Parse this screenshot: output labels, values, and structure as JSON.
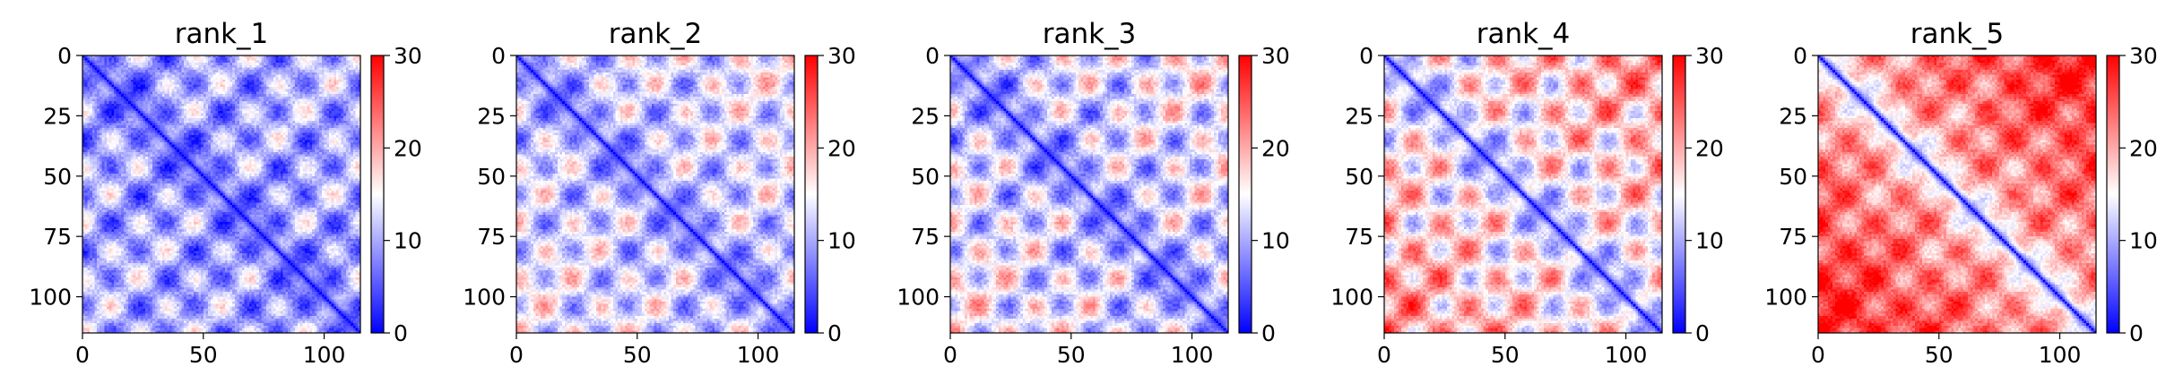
{
  "chart_data": [
    {
      "type": "heatmap",
      "title": "rank_1",
      "matrix_size": 115,
      "xlim": [
        0,
        115
      ],
      "ylim": [
        115,
        0
      ],
      "x_ticks": [
        0,
        50,
        100
      ],
      "x_tick_labels": [
        "0",
        "50",
        "100"
      ],
      "y_ticks": [
        0,
        25,
        50,
        75,
        100
      ],
      "y_tick_labels": [
        "0",
        "25",
        "50",
        "75",
        "100"
      ],
      "colorbar": {
        "range": [
          0,
          30
        ],
        "ticks": [
          0,
          10,
          20,
          30
        ],
        "tick_labels": [
          "0",
          "10",
          "20",
          "30"
        ],
        "colormap": "bwr"
      },
      "pattern": {
        "diagonal_value": 1,
        "background_value": 9,
        "block_period": 23,
        "block_contrast": 9,
        "outer_gradient": 2,
        "tad_boundaries": [
          23,
          46,
          69,
          92
        ]
      }
    },
    {
      "type": "heatmap",
      "title": "rank_2",
      "matrix_size": 115,
      "xlim": [
        0,
        115
      ],
      "ylim": [
        115,
        0
      ],
      "x_ticks": [
        0,
        50,
        100
      ],
      "x_tick_labels": [
        "0",
        "50",
        "100"
      ],
      "y_ticks": [
        0,
        25,
        50,
        75,
        100
      ],
      "y_tick_labels": [
        "0",
        "25",
        "50",
        "75",
        "100"
      ],
      "colorbar": {
        "range": [
          0,
          30
        ],
        "ticks": [
          0,
          10,
          20,
          30
        ],
        "tick_labels": [
          "0",
          "10",
          "20",
          "30"
        ],
        "colormap": "bwr"
      },
      "pattern": {
        "diagonal_value": 1,
        "background_value": 11,
        "block_period": 23,
        "block_contrast": 9,
        "outer_gradient": 4,
        "tad_boundaries": [
          23,
          46,
          69,
          92
        ]
      }
    },
    {
      "type": "heatmap",
      "title": "rank_3",
      "matrix_size": 115,
      "xlim": [
        0,
        115
      ],
      "ylim": [
        115,
        0
      ],
      "x_ticks": [
        0,
        50,
        100
      ],
      "x_tick_labels": [
        "0",
        "50",
        "100"
      ],
      "y_ticks": [
        0,
        25,
        50,
        75,
        100
      ],
      "y_tick_labels": [
        "0",
        "25",
        "50",
        "75",
        "100"
      ],
      "colorbar": {
        "range": [
          0,
          30
        ],
        "ticks": [
          0,
          10,
          20,
          30
        ],
        "tick_labels": [
          "0",
          "10",
          "20",
          "30"
        ],
        "colormap": "bwr"
      },
      "pattern": {
        "diagonal_value": 1,
        "background_value": 11,
        "block_period": 23,
        "block_contrast": 10,
        "outer_gradient": 5,
        "tad_boundaries": [
          23,
          46,
          69,
          92
        ]
      }
    },
    {
      "type": "heatmap",
      "title": "rank_4",
      "matrix_size": 115,
      "xlim": [
        0,
        115
      ],
      "ylim": [
        115,
        0
      ],
      "x_ticks": [
        0,
        50,
        100
      ],
      "x_tick_labels": [
        "0",
        "50",
        "100"
      ],
      "y_ticks": [
        0,
        25,
        50,
        75,
        100
      ],
      "y_tick_labels": [
        "0",
        "25",
        "50",
        "75",
        "100"
      ],
      "colorbar": {
        "range": [
          0,
          30
        ],
        "ticks": [
          0,
          10,
          20,
          30
        ],
        "tick_labels": [
          "0",
          "10",
          "20",
          "30"
        ],
        "colormap": "bwr"
      },
      "pattern": {
        "diagonal_value": 1,
        "background_value": 14,
        "block_period": 23,
        "block_contrast": 10,
        "outer_gradient": 8,
        "tad_boundaries": [
          23,
          46,
          69,
          92
        ]
      }
    },
    {
      "type": "heatmap",
      "title": "rank_5",
      "matrix_size": 115,
      "xlim": [
        0,
        115
      ],
      "ylim": [
        115,
        0
      ],
      "x_ticks": [
        0,
        50,
        100
      ],
      "x_tick_labels": [
        "0",
        "50",
        "100"
      ],
      "y_ticks": [
        0,
        25,
        50,
        75,
        100
      ],
      "y_tick_labels": [
        "0",
        "25",
        "50",
        "75",
        "100"
      ],
      "colorbar": {
        "range": [
          0,
          30
        ],
        "ticks": [
          0,
          10,
          20,
          30
        ],
        "tick_labels": [
          "0",
          "10",
          "20",
          "30"
        ],
        "colormap": "bwr"
      },
      "pattern": {
        "diagonal_value": 1,
        "background_value": 19,
        "block_period": 23,
        "block_contrast": 7,
        "outer_gradient": 10,
        "tad_boundaries": [
          23,
          46,
          69,
          92
        ]
      }
    }
  ]
}
